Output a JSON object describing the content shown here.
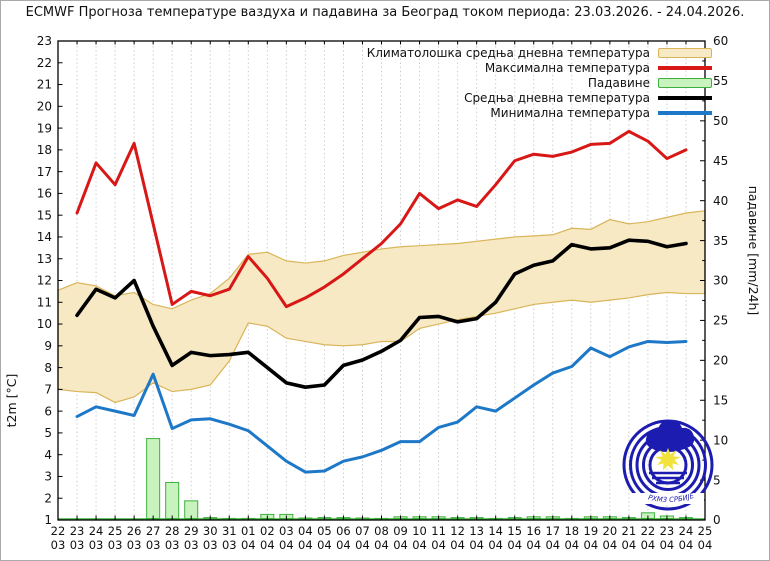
{
  "title": "ECMWF Прогноза температуре ваздуха и падавина за Београд током периода: 23.03.2026. - 24.04.2026.",
  "legend": {
    "items": [
      {
        "label": "Климатолошка средња дневна температура",
        "swatch": "band"
      },
      {
        "label": "Максимална температура",
        "swatch": "red-line"
      },
      {
        "label": "Падавине",
        "swatch": "precip"
      },
      {
        "label": "Средња дневна температура",
        "swatch": "black-line"
      },
      {
        "label": "Минимална температура",
        "swatch": "blue-line"
      }
    ]
  },
  "axes": {
    "left_label": "t2m [°C]",
    "right_label": "падавине [mm/24h]",
    "left_min": 1,
    "left_max": 23,
    "left_step": 1,
    "right_min": 0,
    "right_max": 60,
    "right_step": 5,
    "x_days": [
      "22",
      "23",
      "24",
      "25",
      "26",
      "27",
      "28",
      "29",
      "30",
      "31",
      "01",
      "02",
      "03",
      "04",
      "05",
      "06",
      "07",
      "08",
      "09",
      "10",
      "11",
      "12",
      "13",
      "14",
      "15",
      "16",
      "17",
      "18",
      "19",
      "20",
      "21",
      "22",
      "23",
      "24",
      "25"
    ],
    "x_months": [
      "03",
      "03",
      "03",
      "03",
      "03",
      "03",
      "03",
      "03",
      "03",
      "03",
      "04",
      "04",
      "04",
      "04",
      "04",
      "04",
      "04",
      "04",
      "04",
      "04",
      "04",
      "04",
      "04",
      "04",
      "04",
      "04",
      "04",
      "04",
      "04",
      "04",
      "04",
      "04",
      "04",
      "04",
      "04"
    ]
  },
  "colors": {
    "max_temp": "#d81717",
    "mean_temp": "#000000",
    "min_temp": "#1e78c8",
    "band_fill": "#f7e9c4",
    "band_edge": "#d9b559",
    "precip_fill": "#c9f3be",
    "precip_edge": "#3db03d",
    "grid": "#c9c9c9",
    "logo_blue": "#1c1cb0",
    "sun_yellow": "#f2e23c"
  },
  "chart_data": {
    "type": "line",
    "note": "temperatures in °C on left axis (1-23), precipitation in mm/24h on right axis (0-60)",
    "x_band_dates": [
      "22.03",
      "23.03",
      "24.03",
      "25.03",
      "26.03",
      "27.03",
      "28.03",
      "29.03",
      "30.03",
      "31.03",
      "01.04",
      "02.04",
      "03.04",
      "04.04",
      "05.04",
      "06.04",
      "07.04",
      "08.04",
      "09.04",
      "10.04",
      "11.04",
      "12.04",
      "13.04",
      "14.04",
      "15.04",
      "16.04",
      "17.04",
      "18.04",
      "19.04",
      "20.04",
      "21.04",
      "22.04",
      "23.04",
      "24.04",
      "25.04"
    ],
    "x_series_dates": [
      "23.03",
      "24.03",
      "25.03",
      "26.03",
      "27.03",
      "28.03",
      "29.03",
      "30.03",
      "31.03",
      "01.04",
      "02.04",
      "03.04",
      "04.04",
      "05.04",
      "06.04",
      "07.04",
      "08.04",
      "09.04",
      "10.04",
      "11.04",
      "12.04",
      "13.04",
      "14.04",
      "15.04",
      "16.04",
      "17.04",
      "18.04",
      "19.04",
      "20.04",
      "21.04",
      "22.04",
      "23.04",
      "24.04"
    ],
    "band_upper": [
      11.55,
      11.9,
      11.75,
      11.3,
      11.45,
      10.9,
      10.7,
      11.1,
      11.4,
      12.1,
      13.2,
      13.3,
      12.9,
      12.8,
      12.9,
      13.15,
      13.3,
      13.45,
      13.55,
      13.6,
      13.65,
      13.7,
      13.8,
      13.9,
      14.0,
      14.05,
      14.1,
      14.4,
      14.35,
      14.8,
      14.6,
      14.7,
      14.9,
      15.1,
      15.2
    ],
    "band_lower": [
      7.0,
      6.9,
      6.85,
      6.4,
      6.65,
      7.3,
      6.9,
      7.0,
      7.2,
      8.3,
      10.05,
      9.9,
      9.35,
      9.2,
      9.05,
      9.0,
      9.05,
      9.2,
      9.2,
      9.8,
      10.0,
      10.2,
      10.35,
      10.5,
      10.7,
      10.9,
      11.0,
      11.1,
      11.0,
      11.1,
      11.2,
      11.35,
      11.45,
      11.4,
      11.4
    ],
    "max_temp": [
      15.1,
      17.4,
      16.4,
      18.3,
      14.6,
      10.9,
      11.5,
      11.3,
      11.6,
      13.1,
      12.1,
      10.8,
      11.2,
      11.7,
      12.3,
      13.0,
      13.7,
      14.6,
      16.0,
      15.3,
      15.7,
      15.4,
      16.4,
      17.5,
      17.8,
      17.7,
      17.9,
      18.25,
      18.3,
      18.85,
      18.4,
      17.6,
      18.0
    ],
    "mean_temp": [
      10.4,
      11.6,
      11.2,
      12.0,
      9.9,
      8.1,
      8.7,
      8.55,
      8.6,
      8.7,
      8.0,
      7.3,
      7.1,
      7.2,
      8.1,
      8.35,
      8.75,
      9.25,
      10.3,
      10.35,
      10.1,
      10.25,
      11.0,
      12.3,
      12.7,
      12.9,
      13.65,
      13.45,
      13.5,
      13.85,
      13.8,
      13.55,
      13.7
    ],
    "min_temp": [
      5.75,
      6.2,
      6.0,
      5.8,
      7.7,
      5.2,
      5.6,
      5.65,
      5.4,
      5.1,
      4.4,
      3.7,
      3.2,
      3.25,
      3.7,
      3.9,
      4.2,
      4.6,
      4.6,
      5.25,
      5.5,
      6.2,
      6.0,
      6.6,
      7.2,
      7.75,
      8.05,
      8.9,
      8.5,
      8.95,
      9.2,
      9.15,
      9.2
    ],
    "precip_mm": [
      0,
      0,
      0,
      0,
      10.2,
      4.7,
      2.4,
      0.3,
      0.2,
      0.2,
      0.7,
      0.7,
      0.25,
      0.3,
      0.3,
      0.25,
      0.2,
      0.4,
      0.4,
      0.4,
      0.3,
      0.3,
      0.2,
      0.3,
      0.4,
      0.4,
      0.2,
      0.4,
      0.4,
      0.3,
      0.9,
      0.5,
      0.3
    ],
    "ylim_left": [
      1,
      23
    ],
    "ylim_right": [
      0,
      60
    ],
    "grid": "vertical-dotted",
    "legend_position": "top-right-inside"
  },
  "logo": {
    "text": "РХМЗ СРБИЈЕ"
  }
}
